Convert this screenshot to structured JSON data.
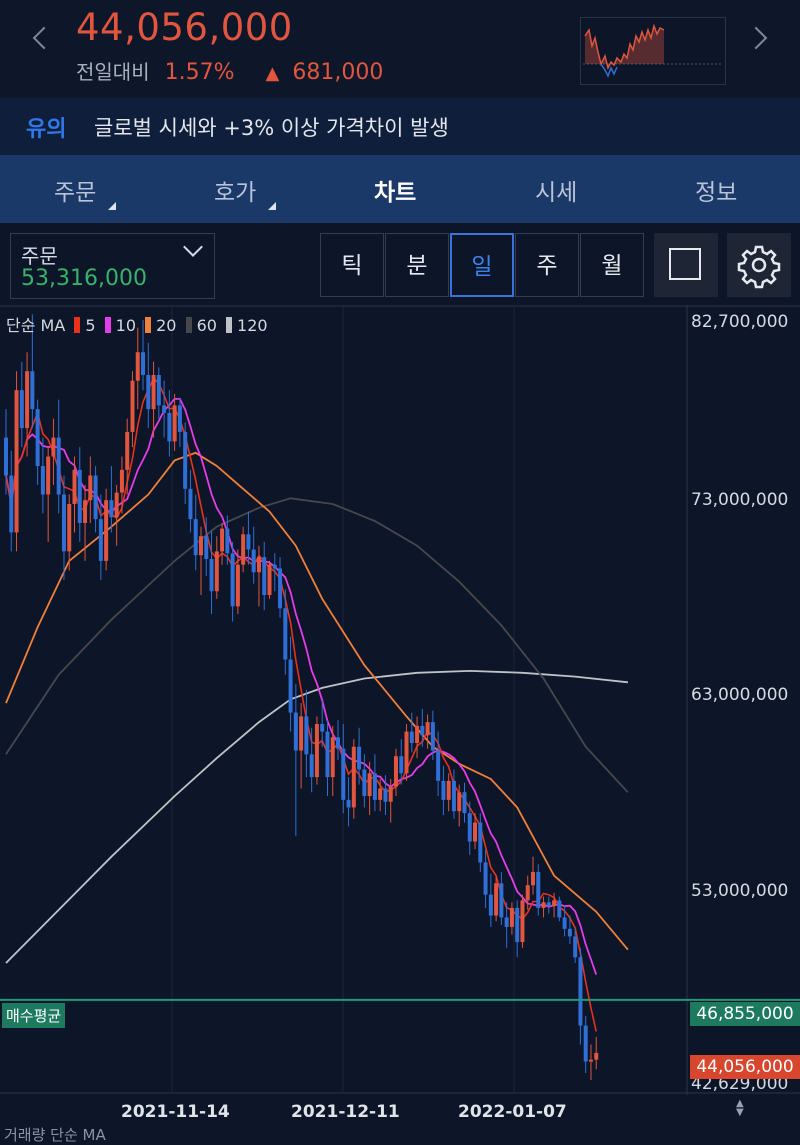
{
  "header": {
    "price": "44,056,000",
    "change_label": "전일대비",
    "change_pct": "1.57%",
    "change_dir_icon": "▲",
    "change_amount": "681,000"
  },
  "notice": {
    "badge": "유의",
    "text": "글로벌 시세와 +3% 이상 가격차이 발생"
  },
  "tabs": [
    {
      "label": "주문",
      "has_menu": true
    },
    {
      "label": "호가",
      "has_menu": true
    },
    {
      "label": "차트",
      "active": true
    },
    {
      "label": "시세"
    },
    {
      "label": "정보"
    }
  ],
  "order": {
    "label": "주문",
    "value": "53,316,000"
  },
  "periods": [
    "틱",
    "분",
    "일",
    "주",
    "월"
  ],
  "active_period": "일",
  "toolbar": {
    "icons": [
      "square-icon",
      "gear-icon"
    ]
  },
  "colors": {
    "up": "#e2553e",
    "down": "#2f6fd6",
    "ma5": "#e8321e",
    "ma10": "#e53be8",
    "ma20": "#f0803a",
    "ma60": "#46484d",
    "ma120": "#bfc3c8",
    "avg_line": "#1e9a78"
  },
  "legend": {
    "title": "단순 MA",
    "items": [
      {
        "label": "5",
        "color": "#e8321e"
      },
      {
        "label": "10",
        "color": "#e53be8"
      },
      {
        "label": "20",
        "color": "#f0803a"
      },
      {
        "label": "60",
        "color": "#46484d"
      },
      {
        "label": "120",
        "color": "#bfc3c8"
      }
    ]
  },
  "overlay": {
    "avg_label": "매수평균",
    "avg_value": "46,855,000",
    "current_value": "44,056,000"
  },
  "bottom_text": "거래량 단순 MA",
  "chart_data": {
    "type": "candlestick",
    "y_axis_labels": [
      "82,700,000",
      "73,000,000",
      "63,000,000",
      "53,000,000",
      "42,629,000"
    ],
    "x_axis_labels": [
      "2021-11-14",
      "2021-12-11",
      "2022-01-07"
    ],
    "ylim": [
      42629000,
      82700000
    ],
    "avg_buy_price": 46855000,
    "current_price": 44056000,
    "ohlc": [
      [
        76500000,
        78000000,
        73500000,
        74500000
      ],
      [
        74500000,
        75800000,
        70500000,
        71500000
      ],
      [
        71500000,
        80000000,
        70500000,
        79000000
      ],
      [
        79000000,
        80500000,
        76000000,
        77000000
      ],
      [
        77000000,
        81000000,
        75500000,
        80000000
      ],
      [
        80000000,
        83000000,
        77000000,
        78000000
      ],
      [
        78000000,
        78500000,
        74000000,
        75000000
      ],
      [
        75000000,
        76500000,
        72500000,
        73500000
      ],
      [
        73500000,
        76000000,
        71000000,
        75500000
      ],
      [
        75500000,
        77500000,
        74000000,
        76500000
      ],
      [
        76500000,
        78500000,
        72500000,
        73500000
      ],
      [
        73500000,
        74500000,
        69000000,
        70500000
      ],
      [
        70500000,
        73500000,
        69500000,
        73000000
      ],
      [
        73000000,
        75500000,
        71500000,
        74800000
      ],
      [
        74800000,
        76000000,
        71000000,
        72000000
      ],
      [
        72000000,
        74000000,
        70000000,
        73200000
      ],
      [
        73200000,
        75500000,
        72000000,
        74500000
      ],
      [
        74500000,
        75000000,
        71500000,
        72200000
      ],
      [
        72200000,
        73500000,
        69000000,
        70000000
      ],
      [
        70000000,
        73800000,
        69500000,
        73200000
      ],
      [
        73200000,
        75000000,
        71500000,
        72300000
      ],
      [
        72300000,
        74000000,
        70800000,
        73600000
      ],
      [
        73600000,
        75500000,
        72500000,
        74800000
      ],
      [
        74800000,
        77500000,
        73500000,
        76800000
      ],
      [
        76800000,
        80000000,
        76000000,
        79500000
      ],
      [
        79500000,
        82300000,
        78000000,
        81000000
      ],
      [
        81000000,
        82700000,
        79000000,
        79800000
      ],
      [
        79800000,
        81500000,
        77000000,
        78000000
      ],
      [
        78000000,
        80500000,
        76500000,
        79800000
      ],
      [
        79800000,
        80200000,
        77500000,
        78200000
      ],
      [
        78200000,
        79500000,
        76500000,
        77800000
      ],
      [
        77800000,
        79000000,
        75500000,
        76300000
      ],
      [
        76300000,
        78800000,
        75800000,
        78200000
      ],
      [
        78200000,
        78600000,
        76000000,
        76800000
      ],
      [
        76800000,
        77300000,
        73000000,
        73800000
      ],
      [
        73800000,
        74800000,
        71500000,
        72200000
      ],
      [
        72200000,
        73500000,
        69500000,
        70300000
      ],
      [
        70300000,
        71800000,
        68200000,
        71300000
      ],
      [
        71300000,
        72300000,
        69200000,
        70100000
      ],
      [
        70100000,
        71600000,
        67200000,
        68400000
      ],
      [
        68400000,
        71300000,
        68000000,
        70500000
      ],
      [
        70500000,
        72000000,
        69800000,
        71700000
      ],
      [
        71700000,
        72400000,
        69800000,
        70400000
      ],
      [
        70400000,
        71000000,
        66800000,
        67600000
      ],
      [
        67600000,
        70600000,
        67200000,
        69800000
      ],
      [
        69800000,
        71800000,
        69400000,
        71400000
      ],
      [
        71400000,
        72600000,
        69800000,
        70600000
      ],
      [
        70600000,
        71800000,
        68800000,
        69400000
      ],
      [
        69400000,
        70800000,
        67600000,
        70200000
      ],
      [
        70200000,
        71000000,
        67400000,
        68200000
      ],
      [
        68200000,
        70000000,
        68000000,
        69800000
      ],
      [
        69800000,
        70400000,
        68400000,
        69600000
      ],
      [
        69600000,
        70200000,
        67000000,
        67500000
      ],
      [
        67500000,
        68500000,
        64000000,
        64800000
      ],
      [
        64800000,
        66000000,
        61000000,
        62000000
      ],
      [
        62000000,
        63500000,
        55500000,
        60000000
      ],
      [
        60000000,
        62500000,
        58000000,
        61800000
      ],
      [
        61800000,
        63200000,
        58600000,
        59800000
      ],
      [
        59800000,
        61200000,
        57800000,
        58600000
      ],
      [
        58600000,
        61800000,
        58200000,
        61400000
      ],
      [
        61400000,
        62600000,
        60200000,
        61000000
      ],
      [
        61000000,
        61600000,
        57600000,
        58600000
      ],
      [
        58600000,
        61300000,
        57600000,
        60700000
      ],
      [
        60700000,
        61600000,
        59500000,
        60100000
      ],
      [
        60100000,
        61400000,
        56700000,
        57400000
      ],
      [
        57400000,
        58600000,
        56000000,
        57000000
      ],
      [
        57000000,
        60600000,
        56400000,
        60200000
      ],
      [
        60200000,
        61200000,
        58200000,
        59000000
      ],
      [
        59000000,
        59800000,
        57000000,
        57600000
      ],
      [
        57600000,
        59400000,
        56600000,
        58800000
      ],
      [
        58800000,
        59800000,
        56800000,
        57400000
      ],
      [
        57400000,
        58500000,
        56800000,
        58000000
      ],
      [
        58000000,
        58700000,
        56600000,
        57300000
      ],
      [
        57300000,
        58500000,
        56200000,
        58100000
      ],
      [
        58100000,
        60100000,
        57600000,
        59700000
      ],
      [
        59700000,
        60600000,
        58200000,
        58800000
      ],
      [
        58800000,
        61400000,
        58400000,
        61000000
      ],
      [
        61000000,
        62000000,
        59900000,
        60400000
      ],
      [
        60400000,
        61800000,
        59600000,
        61300000
      ],
      [
        61300000,
        62200000,
        60200000,
        60800000
      ],
      [
        60800000,
        61900000,
        60100000,
        61500000
      ],
      [
        61500000,
        62100000,
        59500000,
        60000000
      ],
      [
        60000000,
        61000000,
        57600000,
        58400000
      ],
      [
        58400000,
        59200000,
        56600000,
        57400000
      ],
      [
        57400000,
        58800000,
        56800000,
        58400000
      ],
      [
        58400000,
        59000000,
        56400000,
        56800000
      ],
      [
        56800000,
        58200000,
        56000000,
        57800000
      ],
      [
        57800000,
        58300000,
        56200000,
        56700000
      ],
      [
        56700000,
        57300000,
        54500000,
        55200000
      ],
      [
        55200000,
        56700000,
        54800000,
        56200000
      ],
      [
        56200000,
        56700000,
        53600000,
        54100000
      ],
      [
        54100000,
        54800000,
        51700000,
        52400000
      ],
      [
        52400000,
        53500000,
        50700000,
        51300000
      ],
      [
        51300000,
        53400000,
        51000000,
        53000000
      ],
      [
        53000000,
        53600000,
        50800000,
        51200000
      ],
      [
        51200000,
        52000000,
        49600000,
        50700000
      ],
      [
        50700000,
        52000000,
        50300000,
        51700000
      ],
      [
        51700000,
        52100000,
        49100000,
        49900000
      ],
      [
        49900000,
        52400000,
        49600000,
        52100000
      ],
      [
        52100000,
        53400000,
        51600000,
        52900000
      ],
      [
        52900000,
        54400000,
        52400000,
        53600000
      ],
      [
        53600000,
        54000000,
        51300000,
        51700000
      ],
      [
        51700000,
        52300000,
        51200000,
        52000000
      ],
      [
        52000000,
        52300000,
        51400000,
        51800000
      ],
      [
        51800000,
        52500000,
        51200000,
        52100000
      ],
      [
        52100000,
        52300000,
        51000000,
        51200000
      ],
      [
        51200000,
        51800000,
        50200000,
        50600000
      ],
      [
        50600000,
        51300000,
        49800000,
        50200000
      ],
      [
        50200000,
        50700000,
        48800000,
        49100000
      ],
      [
        49100000,
        49600000,
        44500000,
        45500000
      ],
      [
        45500000,
        46000000,
        43000000,
        43600000
      ],
      [
        43600000,
        44500000,
        42629000,
        43700000
      ],
      [
        43700000,
        44900000,
        43200000,
        44056000
      ]
    ],
    "ma20": [
      [
        0,
        62500000
      ],
      [
        6,
        66500000
      ],
      [
        12,
        70000000
      ],
      [
        20,
        71800000
      ],
      [
        27,
        73500000
      ],
      [
        32,
        75300000
      ],
      [
        36,
        75700000
      ],
      [
        40,
        75000000
      ],
      [
        45,
        73800000
      ],
      [
        50,
        72600000
      ],
      [
        55,
        70800000
      ],
      [
        60,
        68000000
      ],
      [
        68,
        64500000
      ],
      [
        76,
        61800000
      ],
      [
        81,
        60200000
      ],
      [
        86,
        59300000
      ],
      [
        92,
        58500000
      ],
      [
        97,
        57000000
      ],
      [
        104,
        53400000
      ],
      [
        112,
        51500000
      ],
      [
        118,
        49500000
      ]
    ],
    "ma60": [
      [
        0,
        59800000
      ],
      [
        10,
        64000000
      ],
      [
        20,
        66900000
      ],
      [
        32,
        70000000
      ],
      [
        40,
        71800000
      ],
      [
        48,
        72800000
      ],
      [
        54,
        73300000
      ],
      [
        62,
        73000000
      ],
      [
        70,
        72100000
      ],
      [
        78,
        70800000
      ],
      [
        86,
        68900000
      ],
      [
        94,
        66600000
      ],
      [
        102,
        63800000
      ],
      [
        110,
        60200000
      ],
      [
        118,
        57800000
      ]
    ],
    "ma120": [
      [
        0,
        48800000
      ],
      [
        10,
        51600000
      ],
      [
        20,
        54400000
      ],
      [
        32,
        57600000
      ],
      [
        40,
        59600000
      ],
      [
        48,
        61500000
      ],
      [
        54,
        62700000
      ],
      [
        60,
        63300000
      ],
      [
        68,
        63800000
      ],
      [
        78,
        64100000
      ],
      [
        88,
        64200000
      ],
      [
        98,
        64100000
      ],
      [
        108,
        63900000
      ],
      [
        118,
        63600000
      ]
    ]
  }
}
